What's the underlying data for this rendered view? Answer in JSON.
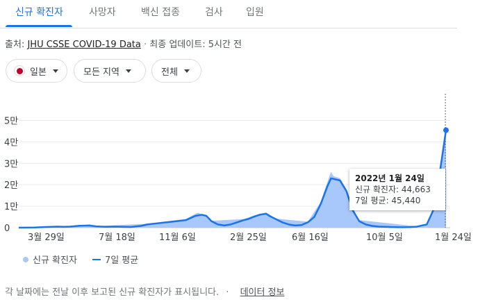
{
  "tabs": [
    {
      "label": "신규 확진자",
      "active": true
    },
    {
      "label": "사망자",
      "active": false
    },
    {
      "label": "백신 접종",
      "active": false
    },
    {
      "label": "검사",
      "active": false
    },
    {
      "label": "입원",
      "active": false
    }
  ],
  "source": {
    "prefix": "출처:",
    "link": "JHU CSSE COVID-19 Data",
    "sep": "·",
    "updated": "최종 업데이트: 5시간 전"
  },
  "filters": {
    "country": "일본",
    "region": "모든 지역",
    "period": "전체"
  },
  "tooltip": {
    "title": "2022년 1월 24일",
    "new_cases": "신규 확진자: 44,663",
    "avg": "7일 평균: 45,440"
  },
  "legend": {
    "new_cases": "신규 확진자",
    "avg": "7일 평균"
  },
  "footer": {
    "text": "각 날짜에는 전날 이후 보고된 신규 확진자가 표시됩니다.",
    "sep": "·",
    "link": "데이터 정보"
  },
  "colors": {
    "accent": "#1a73e8",
    "area": "#a8c7fa"
  },
  "chart_data": {
    "type": "area",
    "x_ticks": [
      "3월 29일",
      "7월 18일",
      "11월 6일",
      "2월 25일",
      "6월 16일",
      "10월 5일",
      "1월 24일"
    ],
    "y_ticks": [
      "0",
      "1만",
      "2만",
      "3만",
      "4만",
      "5만"
    ],
    "ylim": [
      0,
      55000
    ],
    "grid": true,
    "series": [
      {
        "name": "7일 평균",
        "x": [
          0,
          25,
          40,
          60,
          70,
          80,
          95,
          110,
          120,
          135,
          150,
          160,
          175,
          180,
          190,
          200,
          215,
          230,
          245,
          260,
          275,
          285,
          292,
          300,
          310,
          320,
          330,
          340,
          350,
          357,
          365,
          375,
          385,
          390,
          400,
          410,
          420,
          430,
          440,
          450,
          460,
          470,
          480,
          486,
          500,
          510,
          520,
          530,
          540,
          550,
          560,
          570,
          580,
          590,
          600,
          610,
          620,
          635,
          645,
          655,
          665
        ],
        "values": [
          0,
          100,
          300,
          500,
          400,
          500,
          900,
          1000,
          600,
          400,
          500,
          400,
          300,
          500,
          800,
          1500,
          2000,
          2500,
          3000,
          3500,
          5500,
          6000,
          5500,
          3000,
          1500,
          1000,
          1500,
          2500,
          3500,
          4000,
          5000,
          6000,
          6500,
          5500,
          4000,
          2500,
          1500,
          1000,
          1200,
          2500,
          5000,
          11000,
          19000,
          23000,
          22000,
          17000,
          8000,
          3000,
          1500,
          800,
          500,
          400,
          300,
          200,
          200,
          300,
          500,
          1500,
          8000,
          25000,
          45440
        ]
      },
      {
        "name": "신규 확진자",
        "x": [
          0,
          95,
          110,
          120,
          200,
          260,
          275,
          280,
          285,
          292,
          300,
          350,
          375,
          385,
          390,
          400,
          450,
          470,
          480,
          486,
          490,
          500,
          510,
          520,
          530,
          620,
          635,
          645,
          655,
          665
        ],
        "values": [
          0,
          1000,
          1500,
          700,
          1800,
          4000,
          6500,
          7000,
          6000,
          5800,
          3200,
          4000,
          6500,
          7000,
          6200,
          4200,
          2800,
          12000,
          21000,
          26000,
          24000,
          23000,
          18000,
          9000,
          3500,
          600,
          1800,
          9000,
          27000,
          44663
        ]
      }
    ]
  }
}
